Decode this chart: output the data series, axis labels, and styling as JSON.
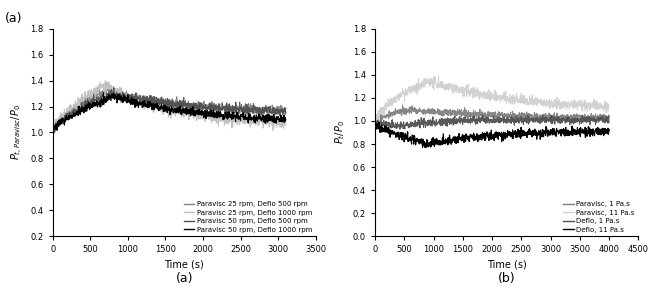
{
  "figsize": [
    6.58,
    2.88
  ],
  "dpi": 100,
  "subplot_a": {
    "xlabel": "Time (s)",
    "ylabel": "$P_{t, Paravisc}/P_0$",
    "xlim": [
      0,
      3500
    ],
    "ylim": [
      0.2,
      1.8
    ],
    "yticks": [
      0.2,
      0.4,
      0.6,
      0.8,
      1.0,
      1.2,
      1.4,
      1.6,
      1.8
    ],
    "xticks": [
      0,
      500,
      1000,
      1500,
      2000,
      2500,
      3000,
      3500
    ],
    "panel_label": "(a)",
    "legend_labels": [
      "Paravisc 25 rpm, Deflo 500 rpm",
      "Paravisc 25 rpm, Deflo 1000 rpm",
      "Paravisc 50 rpm, Deflo 500 rpm",
      "Paravisc 50 rpm, Deflo 1000 rpm"
    ],
    "line_colors": [
      "#808080",
      "#c0c0c0",
      "#505050",
      "#000000"
    ]
  },
  "subplot_b": {
    "xlabel": "Time (s)",
    "ylabel": "$P_t/P_0$",
    "xlim": [
      0,
      4500
    ],
    "ylim": [
      0,
      1.8
    ],
    "yticks": [
      0,
      0.2,
      0.4,
      0.6,
      0.8,
      1.0,
      1.2,
      1.4,
      1.6,
      1.8
    ],
    "xticks": [
      0,
      500,
      1000,
      1500,
      2000,
      2500,
      3000,
      3500,
      4000,
      4500
    ],
    "panel_label": "(b)",
    "legend_labels": [
      "Paravisc, 1 Pa.s",
      "Paravisc, 11 Pa.s",
      "Deflo, 1 Pa.s",
      "Deflo, 11 Pa.s"
    ],
    "line_colors": [
      "#808080",
      "#d0d0d0",
      "#505050",
      "#000000"
    ]
  }
}
